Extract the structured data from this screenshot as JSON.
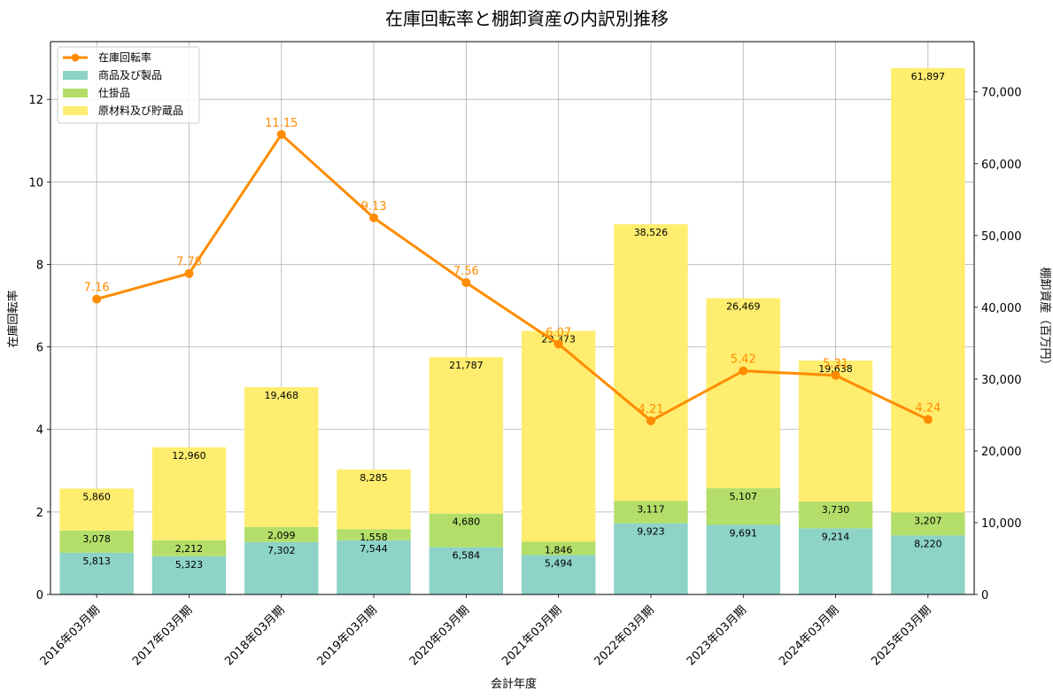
{
  "chart_data": {
    "type": "bar+line",
    "title": "在庫回転率と棚卸資産の内訳別推移",
    "xlabel": "会計年度",
    "ylabel_left": "在庫回転率",
    "ylabel_right": "棚卸資産（百万円）",
    "ylim_left": [
      0,
      13.4
    ],
    "ylim_right": [
      0,
      77000
    ],
    "yticks_left": [
      "0",
      "2",
      "4",
      "6",
      "8",
      "10",
      "12"
    ],
    "yticks_right": [
      "0",
      "10,000",
      "20,000",
      "30,000",
      "40,000",
      "50,000",
      "60,000",
      "70,000"
    ],
    "grid": true,
    "legend_position": "top-left",
    "categories": [
      "2016年03月期",
      "2017年03月期",
      "2018年03月期",
      "2019年03月期",
      "2020年03月期",
      "2021年03月期",
      "2022年03月期",
      "2023年03月期",
      "2024年03月期",
      "2025年03月期"
    ],
    "series": [
      {
        "name": "商品及び製品",
        "kind": "bar",
        "color": "#8dd3c7",
        "values": [
          5813,
          5323,
          7302,
          7544,
          6584,
          5494,
          9923,
          9691,
          9214,
          8220
        ],
        "labels": [
          "5,813",
          "5,323",
          "7,302",
          "7,544",
          "6,584",
          "5,494",
          "9,923",
          "9,691",
          "9,214",
          "8,220"
        ]
      },
      {
        "name": "仕掛品",
        "kind": "bar",
        "color": "#b3de69",
        "values": [
          3078,
          2212,
          2099,
          1558,
          4680,
          1846,
          3117,
          5107,
          3730,
          3207
        ],
        "labels": [
          "3,078",
          "2,212",
          "2,099",
          "1,558",
          "4,680",
          "1,846",
          "3,117",
          "5,107",
          "3,730",
          "3,207"
        ]
      },
      {
        "name": "原材料及び貯蔵品",
        "kind": "bar",
        "color": "#ffed6f",
        "values": [
          5860,
          12960,
          19468,
          8285,
          21787,
          29373,
          38526,
          26469,
          19638,
          61897
        ],
        "labels": [
          "5,860",
          "12,960",
          "19,468",
          "8,285",
          "21,787",
          "29,373",
          "38,526",
          "26,469",
          "19,638",
          "61,897"
        ]
      },
      {
        "name": "在庫回転率",
        "kind": "line",
        "color": "#ff8c00",
        "values": [
          7.16,
          7.78,
          11.15,
          9.13,
          7.56,
          6.07,
          4.21,
          5.42,
          5.31,
          4.24
        ],
        "labels": [
          "7.16",
          "7.78",
          "11.15",
          "9.13",
          "7.56",
          "6.07",
          "4.21",
          "5.42",
          "5.31",
          "4.24"
        ]
      }
    ]
  }
}
